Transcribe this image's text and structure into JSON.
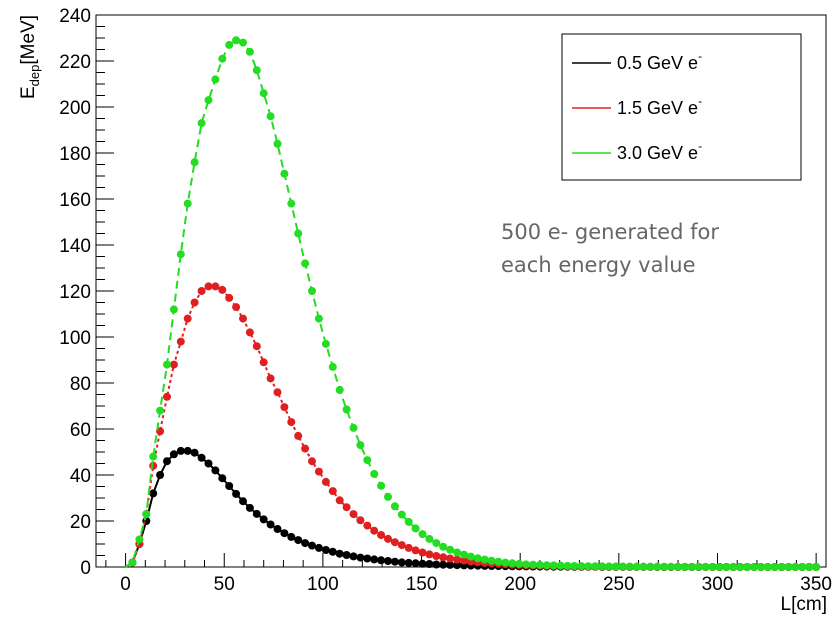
{
  "chart_data": {
    "type": "scatter",
    "xlabel": "L[cm]",
    "ylabel_main": "E",
    "ylabel_sub": "dep",
    "ylabel_unit": "[MeV]",
    "xlim": [
      -15,
      355
    ],
    "ylim": [
      0,
      240
    ],
    "x_ticks": [
      0,
      50,
      100,
      150,
      200,
      250,
      300,
      350
    ],
    "y_ticks": [
      0,
      20,
      40,
      60,
      80,
      100,
      120,
      140,
      160,
      180,
      200,
      220,
      240
    ],
    "grid": false,
    "legend_placement": "top-right",
    "annotation": {
      "line1": "500 e- generated for",
      "line2": "each energy value"
    },
    "series": [
      {
        "name": "0.5 GeV e",
        "name_sup": "-",
        "color": "#000000",
        "fit_style": "solid",
        "x": [
          3.5,
          7,
          10.5,
          14,
          17.5,
          21,
          24.5,
          28,
          31.5,
          35,
          38.5,
          42,
          45.5,
          49,
          52.5,
          56,
          59.5,
          63,
          66.5,
          70,
          73.5,
          77,
          80.5,
          84,
          87.5,
          91,
          94.5,
          98,
          101.5,
          105,
          108.5,
          112,
          115.5,
          119,
          122.5,
          126,
          129.5,
          133,
          136.5,
          140,
          143.5,
          147,
          150.5,
          154,
          157.5,
          161,
          164.5,
          168,
          171.5,
          175,
          178.5,
          182,
          185.5,
          189,
          192.5,
          196,
          199.5,
          203,
          206.5,
          210,
          213.5,
          217,
          220.5,
          224,
          227.5,
          231,
          234.5,
          238,
          241.5,
          245,
          248.5,
          252,
          255.5,
          259,
          262.5,
          266,
          269.5,
          273,
          276.5,
          280,
          283.5,
          287,
          290.5,
          294,
          297.5,
          301,
          304.5,
          308,
          311.5,
          315,
          318.5,
          322,
          325.5,
          329,
          332.5,
          336,
          339.5,
          343,
          346.5,
          350
        ],
        "y": [
          2,
          10,
          20,
          32,
          40,
          46,
          49,
          50.5,
          50.5,
          49.7,
          47.5,
          45,
          42,
          38.6,
          35.2,
          31.8,
          28.6,
          25.7,
          23.1,
          20.7,
          18.5,
          16.5,
          14.7,
          13.1,
          11.7,
          10.4,
          9.3,
          8.3,
          7.4,
          6.6,
          5.8,
          5.2,
          4.6,
          4.1,
          3.7,
          3.3,
          2.9,
          2.6,
          2.3,
          2,
          1.8,
          1.6,
          1.4,
          1.3,
          1.1,
          1,
          0.9,
          0.8,
          0.7,
          0.6,
          0.55,
          0.5,
          0.45,
          0.4,
          0.35,
          0.3,
          0.27,
          0.24,
          0.21,
          0.19,
          0.17,
          0.15,
          0.13,
          0.12,
          0.1,
          0.09,
          0.08,
          0.07,
          0.06,
          0.05,
          0.05,
          0.04,
          0.04,
          0.03,
          0.03,
          0.03,
          0.02,
          0.02,
          0.02,
          0.02,
          0.01,
          0.01,
          0.01,
          0.01,
          0.01,
          0.01,
          0.01,
          0.01,
          0,
          0,
          0,
          0,
          0,
          0,
          0,
          0,
          0,
          0,
          0,
          0
        ]
      },
      {
        "name": "1.5 GeV e",
        "name_sup": "-",
        "color": "#e02020",
        "fit_style": "dotted",
        "x": [
          3.5,
          7,
          10.5,
          14,
          17.5,
          21,
          24.5,
          28,
          31.5,
          35,
          38.5,
          42,
          45.5,
          49,
          52.5,
          56,
          59.5,
          63,
          66.5,
          70,
          73.5,
          77,
          80.5,
          84,
          87.5,
          91,
          94.5,
          98,
          101.5,
          105,
          108.5,
          112,
          115.5,
          119,
          122.5,
          126,
          129.5,
          133,
          136.5,
          140,
          143.5,
          147,
          150.5,
          154,
          157.5,
          161,
          164.5,
          168,
          171.5,
          175,
          178.5,
          182,
          185.5,
          189,
          192.5,
          196,
          199.5,
          203,
          206.5,
          210,
          213.5,
          217,
          220.5,
          224,
          227.5,
          231,
          234.5,
          238,
          241.5,
          245,
          248.5,
          252,
          255.5,
          259,
          262.5,
          266,
          269.5,
          273,
          276.5,
          280,
          283.5,
          287,
          290.5,
          294,
          297.5,
          301,
          304.5,
          308,
          311.5,
          315,
          318.5,
          322,
          325.5,
          329,
          332.5,
          336,
          339.5,
          343,
          346.5,
          350
        ],
        "y": [
          2,
          10,
          23,
          44,
          59,
          74,
          88,
          98,
          108,
          115,
          120,
          122,
          122,
          120.5,
          117,
          113,
          108,
          102,
          96,
          89,
          82,
          76,
          69.5,
          63,
          57,
          51.5,
          46,
          41.5,
          37,
          33,
          29,
          26,
          23,
          20.3,
          18,
          15.8,
          13.9,
          12.2,
          10.8,
          9.5,
          8.3,
          7.2,
          6.3,
          5.5,
          4.8,
          4.2,
          3.7,
          3.2,
          2.8,
          2.4,
          2.1,
          1.8,
          1.6,
          1.4,
          1.2,
          1,
          0.9,
          0.8,
          0.7,
          0.6,
          0.5,
          0.45,
          0.4,
          0.35,
          0.3,
          0.25,
          0.22,
          0.19,
          0.17,
          0.15,
          0.13,
          0.11,
          0.1,
          0.09,
          0.08,
          0.07,
          0.06,
          0.05,
          0.04,
          0.04,
          0.03,
          0.03,
          0.03,
          0.02,
          0.02,
          0.02,
          0.02,
          0.01,
          0.01,
          0.01,
          0.01,
          0.01,
          0.01,
          0,
          0,
          0,
          0,
          0,
          0,
          0
        ]
      },
      {
        "name": "3.0 GeV e",
        "name_sup": "-",
        "color": "#22dd22",
        "fit_style": "dashed",
        "x": [
          3.5,
          7,
          10.5,
          14,
          17.5,
          21,
          24.5,
          28,
          31.5,
          35,
          38.5,
          42,
          45.5,
          49,
          52.5,
          56,
          59.5,
          63,
          66.5,
          70,
          73.5,
          77,
          80.5,
          84,
          87.5,
          91,
          94.5,
          98,
          101.5,
          105,
          108.5,
          112,
          115.5,
          119,
          122.5,
          126,
          129.5,
          133,
          136.5,
          140,
          143.5,
          147,
          150.5,
          154,
          157.5,
          161,
          164.5,
          168,
          171.5,
          175,
          178.5,
          182,
          185.5,
          189,
          192.5,
          196,
          199.5,
          203,
          206.5,
          210,
          213.5,
          217,
          220.5,
          224,
          227.5,
          231,
          234.5,
          238,
          241.5,
          245,
          248.5,
          252,
          255.5,
          259,
          262.5,
          266,
          269.5,
          273,
          276.5,
          280,
          283.5,
          287,
          290.5,
          294,
          297.5,
          301,
          304.5,
          308,
          311.5,
          315,
          318.5,
          322,
          325.5,
          329,
          332.5,
          336,
          339.5,
          343,
          346.5,
          350
        ],
        "y": [
          2,
          12,
          23,
          48,
          68,
          88,
          112,
          136,
          158,
          176,
          193,
          203,
          212,
          221,
          227,
          229,
          228,
          224,
          216,
          206,
          196,
          184,
          171,
          158,
          145,
          132,
          120,
          108,
          97,
          87,
          77,
          68.5,
          60.5,
          53,
          46.5,
          40.5,
          35.3,
          30.5,
          26.4,
          22.8,
          19.6,
          16.8,
          14.3,
          12.2,
          10.4,
          8.8,
          7.5,
          6.3,
          5.4,
          4.5,
          3.8,
          3.2,
          2.7,
          2.3,
          1.9,
          1.6,
          1.35,
          1.15,
          1,
          0.9,
          0.8,
          0.7,
          0.6,
          0.5,
          0.45,
          0.4,
          0.35,
          0.3,
          0.26,
          0.23,
          0.2,
          0.18,
          0.16,
          0.14,
          0.12,
          0.1,
          0.09,
          0.08,
          0.07,
          0.06,
          0.05,
          0.04,
          0.04,
          0.03,
          0.03,
          0.02,
          0.02,
          0.02,
          0.02,
          0.01,
          0.01,
          0.01,
          0.01,
          0.01,
          0.01,
          0,
          0,
          0,
          0,
          0
        ]
      }
    ]
  }
}
